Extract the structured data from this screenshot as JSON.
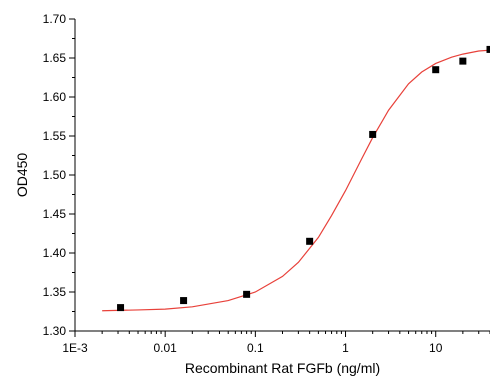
{
  "chart_data": {
    "type": "scatter",
    "title": "",
    "xlabel": "Recombinant Rat FGFb (ng/ml)",
    "ylabel": "OD450",
    "x_scale": "log",
    "xlim": [
      0.001,
      40
    ],
    "ylim": [
      1.3,
      1.7
    ],
    "x_ticks": [
      0.001,
      0.01,
      0.1,
      1,
      10
    ],
    "x_tick_labels": [
      "1E-3",
      "0.01",
      "0.1",
      "1",
      "10"
    ],
    "y_ticks": [
      1.3,
      1.35,
      1.4,
      1.45,
      1.5,
      1.55,
      1.6,
      1.65,
      1.7
    ],
    "y_tick_labels": [
      "1.30",
      "1.35",
      "1.40",
      "1.45",
      "1.50",
      "1.55",
      "1.60",
      "1.65",
      "1.70"
    ],
    "grid": false,
    "legend": "none",
    "series": [
      {
        "kind": "points",
        "marker": "square",
        "color": "#000000",
        "x": [
          0.0032,
          0.016,
          0.08,
          0.4,
          2,
          10,
          20,
          40
        ],
        "y": [
          1.33,
          1.339,
          1.347,
          1.415,
          1.552,
          1.635,
          1.646,
          1.661
        ]
      },
      {
        "kind": "fit-curve",
        "color": "#e8413a",
        "x": [
          0.002,
          0.005,
          0.01,
          0.02,
          0.05,
          0.1,
          0.2,
          0.3,
          0.5,
          0.7,
          1,
          1.5,
          2,
          3,
          5,
          7,
          10,
          15,
          20,
          30,
          40
        ],
        "y": [
          1.326,
          1.327,
          1.328,
          1.331,
          1.339,
          1.35,
          1.37,
          1.388,
          1.42,
          1.448,
          1.48,
          1.52,
          1.548,
          1.583,
          1.617,
          1.632,
          1.643,
          1.651,
          1.655,
          1.659,
          1.66
        ]
      }
    ]
  }
}
